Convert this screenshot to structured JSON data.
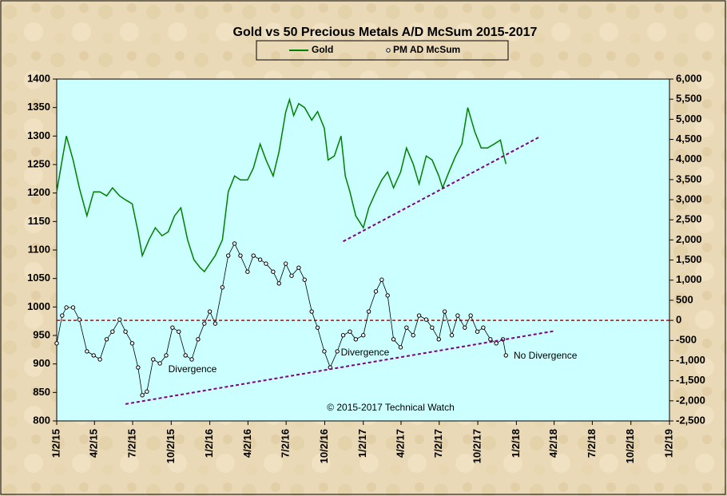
{
  "chart_data": {
    "type": "line",
    "title": "Gold vs 50 Precious Metals A/D McSum 2015-2017",
    "xlim": [
      "1/2/15",
      "1/2/19"
    ],
    "xticks": [
      "1/2/15",
      "4/2/15",
      "7/2/15",
      "10/2/15",
      "1/2/16",
      "4/2/16",
      "7/2/16",
      "10/2/16",
      "1/2/17",
      "4/2/17",
      "7/2/17",
      "10/2/17",
      "1/2/18",
      "4/2/18",
      "7/2/18",
      "10/2/18",
      "1/2/19"
    ],
    "ylim": [
      800,
      1400
    ],
    "yticks": [
      800,
      850,
      900,
      950,
      1000,
      1050,
      1100,
      1150,
      1200,
      1250,
      1300,
      1350,
      1400
    ],
    "y2lim": [
      -2500,
      6000
    ],
    "y2ticks": [
      {
        "value": -2500,
        "label": "-2,500"
      },
      {
        "value": -2000,
        "label": "-2,000"
      },
      {
        "value": -1500,
        "label": "-1,500"
      },
      {
        "value": -1000,
        "label": "-1,000"
      },
      -500,
      0,
      500,
      {
        "value": 1000,
        "label": "1,000"
      },
      {
        "value": 1500,
        "label": "1,500"
      },
      {
        "value": 2000,
        "label": "2,000"
      },
      {
        "value": 2500,
        "label": "2,500"
      },
      {
        "value": 3000,
        "label": "3,000"
      },
      {
        "value": 3500,
        "label": "3,500"
      },
      {
        "value": 4000,
        "label": "4,000"
      },
      {
        "value": 4500,
        "label": "4,500"
      },
      {
        "value": 5000,
        "label": "5,000"
      },
      {
        "value": 5500,
        "label": "5,500"
      },
      {
        "value": 6000,
        "label": "6,000"
      }
    ],
    "series": [
      {
        "name": "Gold",
        "color": "#008000",
        "axis": "y",
        "marker": false,
        "x": [
          "1/2/15",
          "1/15/15",
          "1/25/15",
          "2/10/15",
          "2/25/15",
          "3/15/15",
          "3/31/15",
          "4/15/15",
          "5/1/15",
          "5/15/15",
          "6/1/15",
          "6/15/15",
          "7/1/15",
          "7/15/15",
          "7/25/15",
          "8/10/15",
          "8/25/15",
          "9/10/15",
          "9/25/15",
          "10/10/15",
          "10/25/15",
          "11/10/15",
          "11/25/15",
          "12/10/15",
          "12/20/15",
          "1/2/16",
          "1/15/16",
          "2/1/16",
          "2/15/16",
          "3/1/16",
          "3/15/16",
          "4/1/16",
          "4/15/16",
          "5/1/16",
          "5/15/16",
          "6/1/16",
          "6/15/16",
          "7/1/16",
          "7/10/16",
          "7/20/16",
          "8/1/16",
          "8/15/16",
          "9/1/16",
          "9/15/16",
          "10/1/16",
          "10/10/16",
          "10/25/16",
          "11/10/16",
          "11/20/16",
          "12/1/16",
          "12/15/16",
          "1/2/17",
          "1/15/17",
          "2/1/17",
          "2/15/17",
          "3/1/17",
          "3/15/17",
          "4/1/17",
          "4/15/17",
          "5/1/17",
          "5/15/17",
          "6/1/17",
          "6/15/17",
          "7/1/17",
          "7/10/17",
          "7/25/17",
          "8/10/17",
          "8/25/17",
          "9/8/17",
          "9/25/17",
          "10/10/17",
          "10/25/17",
          "11/10/17",
          "11/25/17",
          "12/1/17",
          "12/8/17"
        ],
        "values": [
          1202,
          1258,
          1300,
          1258,
          1209,
          1160,
          1202,
          1202,
          1195,
          1209,
          1195,
          1188,
          1181,
          1132,
          1090,
          1118,
          1139,
          1125,
          1132,
          1160,
          1174,
          1118,
          1083,
          1069,
          1062,
          1076,
          1090,
          1118,
          1202,
          1230,
          1223,
          1223,
          1244,
          1286,
          1258,
          1230,
          1272,
          1342,
          1364,
          1336,
          1357,
          1350,
          1328,
          1343,
          1314,
          1258,
          1265,
          1300,
          1230,
          1202,
          1160,
          1139,
          1174,
          1202,
          1223,
          1237,
          1209,
          1237,
          1279,
          1251,
          1216,
          1265,
          1258,
          1230,
          1209,
          1237,
          1265,
          1286,
          1350,
          1307,
          1279,
          1279,
          1286,
          1293,
          1272,
          1251
        ]
      },
      {
        "name": "PM AD McSum",
        "color": "#000000",
        "axis": "y2",
        "marker": true,
        "x": [
          "1/2/15",
          "1/15/15",
          "1/25/15",
          "2/10/15",
          "2/25/15",
          "3/15/15",
          "3/31/15",
          "4/15/15",
          "5/1/15",
          "5/15/15",
          "6/1/15",
          "6/15/15",
          "7/1/15",
          "7/15/15",
          "7/25/15",
          "8/5/15",
          "8/20/15",
          "9/5/15",
          "9/20/15",
          "10/5/15",
          "10/20/15",
          "11/5/15",
          "11/20/15",
          "12/5/15",
          "12/20/15",
          "1/2/16",
          "1/15/16",
          "2/1/16",
          "2/15/16",
          "3/1/16",
          "3/15/16",
          "4/1/16",
          "4/15/16",
          "5/1/16",
          "5/15/16",
          "6/1/16",
          "6/15/16",
          "7/1/16",
          "7/15/16",
          "8/1/16",
          "8/15/16",
          "9/1/16",
          "9/15/16",
          "10/1/16",
          "10/15/16",
          "11/1/16",
          "11/15/16",
          "12/1/16",
          "12/15/16",
          "1/2/17",
          "1/15/17",
          "2/1/17",
          "2/15/17",
          "3/1/17",
          "3/15/17",
          "4/1/17",
          "4/15/17",
          "5/1/17",
          "5/15/17",
          "6/1/17",
          "6/15/17",
          "7/1/17",
          "7/15/17",
          "8/1/17",
          "8/15/17",
          "9/1/17",
          "9/15/17",
          "10/1/17",
          "10/15/17",
          "11/1/17",
          "11/15/17",
          "12/1/17",
          "12/8/17"
        ],
        "values": [
          -570,
          120,
          320,
          320,
          20,
          -770,
          -870,
          -970,
          -470,
          -280,
          20,
          -280,
          -570,
          -1170,
          -1860,
          -1770,
          -970,
          -1070,
          -870,
          -180,
          -280,
          -870,
          -970,
          -470,
          -80,
          220,
          -80,
          820,
          1610,
          1910,
          1610,
          1210,
          1610,
          1510,
          1410,
          1210,
          920,
          1410,
          1110,
          1310,
          1010,
          220,
          -180,
          -770,
          -1170,
          -770,
          -370,
          -280,
          -470,
          -370,
          220,
          720,
          1010,
          620,
          -470,
          -670,
          -180,
          -370,
          120,
          20,
          -180,
          -470,
          220,
          -370,
          120,
          -180,
          120,
          -280,
          -180,
          -470,
          -570,
          -470,
          -870
        ]
      }
    ],
    "reference_lines": [
      {
        "axis": "y2",
        "value": 0,
        "color": "#cc0000"
      }
    ],
    "trendlines": [
      {
        "axis": "y",
        "x": [
          "11/15/16",
          "2/25/18"
        ],
        "values": [
          1115,
          1298
        ],
        "color": "#800080"
      },
      {
        "axis": "y2",
        "x": [
          "6/15/15",
          "4/5/18"
        ],
        "values": [
          -2080,
          -260
        ],
        "color": "#800080"
      }
    ],
    "annotations": [
      {
        "text": "Divergence",
        "color": "#008000"
      },
      {
        "text": "Divergence",
        "color": "#008000"
      },
      {
        "text": "No Divergence",
        "color": "#cc0000"
      },
      {
        "text": "© 2015-2017 Technical Watch",
        "color": "#000000"
      }
    ]
  }
}
